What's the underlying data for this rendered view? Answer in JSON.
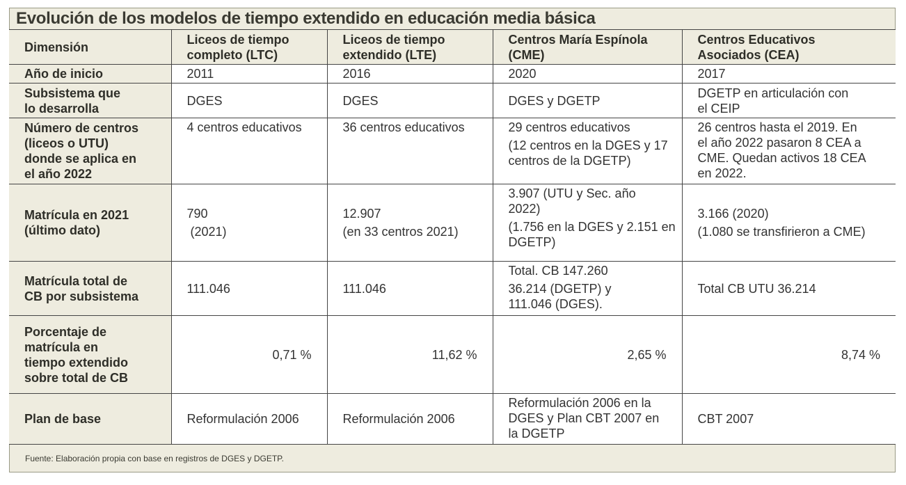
{
  "title": "Evolución de los modelos de tiempo extendido en educación media básica",
  "headers": {
    "dimension": "Dimensión",
    "ltc": [
      "Liceos de tiempo",
      "completo (LTC)"
    ],
    "lte": [
      "Liceos de tiempo",
      "extendido (LTE)"
    ],
    "cme": [
      "Centros María Espínola",
      "(CME)"
    ],
    "cea": [
      "Centros Educativos",
      "Asociados (CEA)"
    ]
  },
  "rows": {
    "anio": {
      "label": [
        "Año de inicio"
      ],
      "ltc": "2011",
      "lte": "2016",
      "cme": "2020",
      "cea": "2017"
    },
    "subsistema": {
      "label": [
        "Subsistema que",
        "lo desarrolla"
      ],
      "ltc": "DGES",
      "lte": "DGES",
      "cme": "DGES y DGETP",
      "cea": [
        "DGETP en articulación con",
        "el CEIP"
      ]
    },
    "centros": {
      "label": [
        "Número de centros",
        "(liceos o UTU)",
        "donde se aplica en",
        "el año 2022"
      ],
      "ltc": "4 centros educativos",
      "lte": "36 centros educativos",
      "cme": [
        "29 centros educativos",
        "(12 centros en la DGES y 17",
        "centros de la DGETP)"
      ],
      "cea": [
        "26 centros hasta el 2019. En",
        "el año 2022 pasaron 8 CEA a",
        "CME. Quedan activos 18 CEA",
        "en 2022."
      ]
    },
    "matricula": {
      "label": [
        "Matrícula en 2021",
        "(último dato)"
      ],
      "ltc": [
        "790",
        " (2021)"
      ],
      "lte": [
        "12.907",
        "(en 33 centros 2021)"
      ],
      "cme": [
        "3.907 (UTU y Sec. año",
        "2022)",
        "(1.756 en la DGES y 2.151 en",
        "DGETP)"
      ],
      "cea": [
        "3.166 (2020)",
        "(1.080 se transfirieron a CME)"
      ]
    },
    "total": {
      "label": [
        "Matrícula total de",
        "CB por subsistema"
      ],
      "ltc": "111.046",
      "lte": "111.046",
      "cme": [
        "Total. CB 147.260",
        "36.214 (DGETP) y",
        "111.046 (DGES)."
      ],
      "cea": "Total CB UTU 36.214"
    },
    "porcentaje": {
      "label": [
        "Porcentaje de",
        "matrícula en",
        "tiempo extendido",
        "sobre total de CB"
      ],
      "ltc": "0,71 %",
      "lte": "11,62 %",
      "cme": "2,65 %",
      "cea": "8,74 %"
    },
    "plan": {
      "label": [
        "Plan de base"
      ],
      "ltc": "Reformulación 2006",
      "lte": "Reformulación 2006",
      "cme": [
        "Reformulación 2006 en la",
        "DGES y Plan CBT 2007 en",
        "la DGETP"
      ],
      "cea": "CBT 2007"
    }
  },
  "source": "Fuente: Elaboración propia con base en registros de DGES y DGETP."
}
